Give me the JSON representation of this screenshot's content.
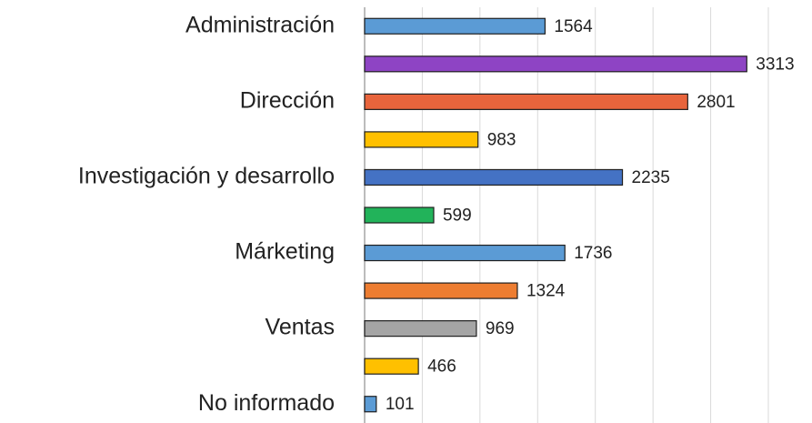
{
  "chart_data": {
    "type": "barh",
    "categories": [
      "Administración",
      null,
      "Dirección",
      null,
      "Investigación y desarrollo",
      null,
      "Márketing",
      null,
      "Ventas",
      null,
      "No informado"
    ],
    "values": [
      1564,
      3313,
      2801,
      983,
      2235,
      599,
      1736,
      1324,
      969,
      466,
      101
    ],
    "colors": [
      "#5b9bd5",
      "#8e44c4",
      "#e8643c",
      "#ffc000",
      "#4472c4",
      "#22b35a",
      "#5b9bd5",
      "#ed7d31",
      "#a5a5a5",
      "#ffc000",
      "#5b9bd5"
    ],
    "xlim": [
      0,
      3500
    ],
    "xticks": [
      0,
      500,
      1000,
      1500,
      2000,
      2500,
      3000,
      3500
    ],
    "grid": true
  }
}
